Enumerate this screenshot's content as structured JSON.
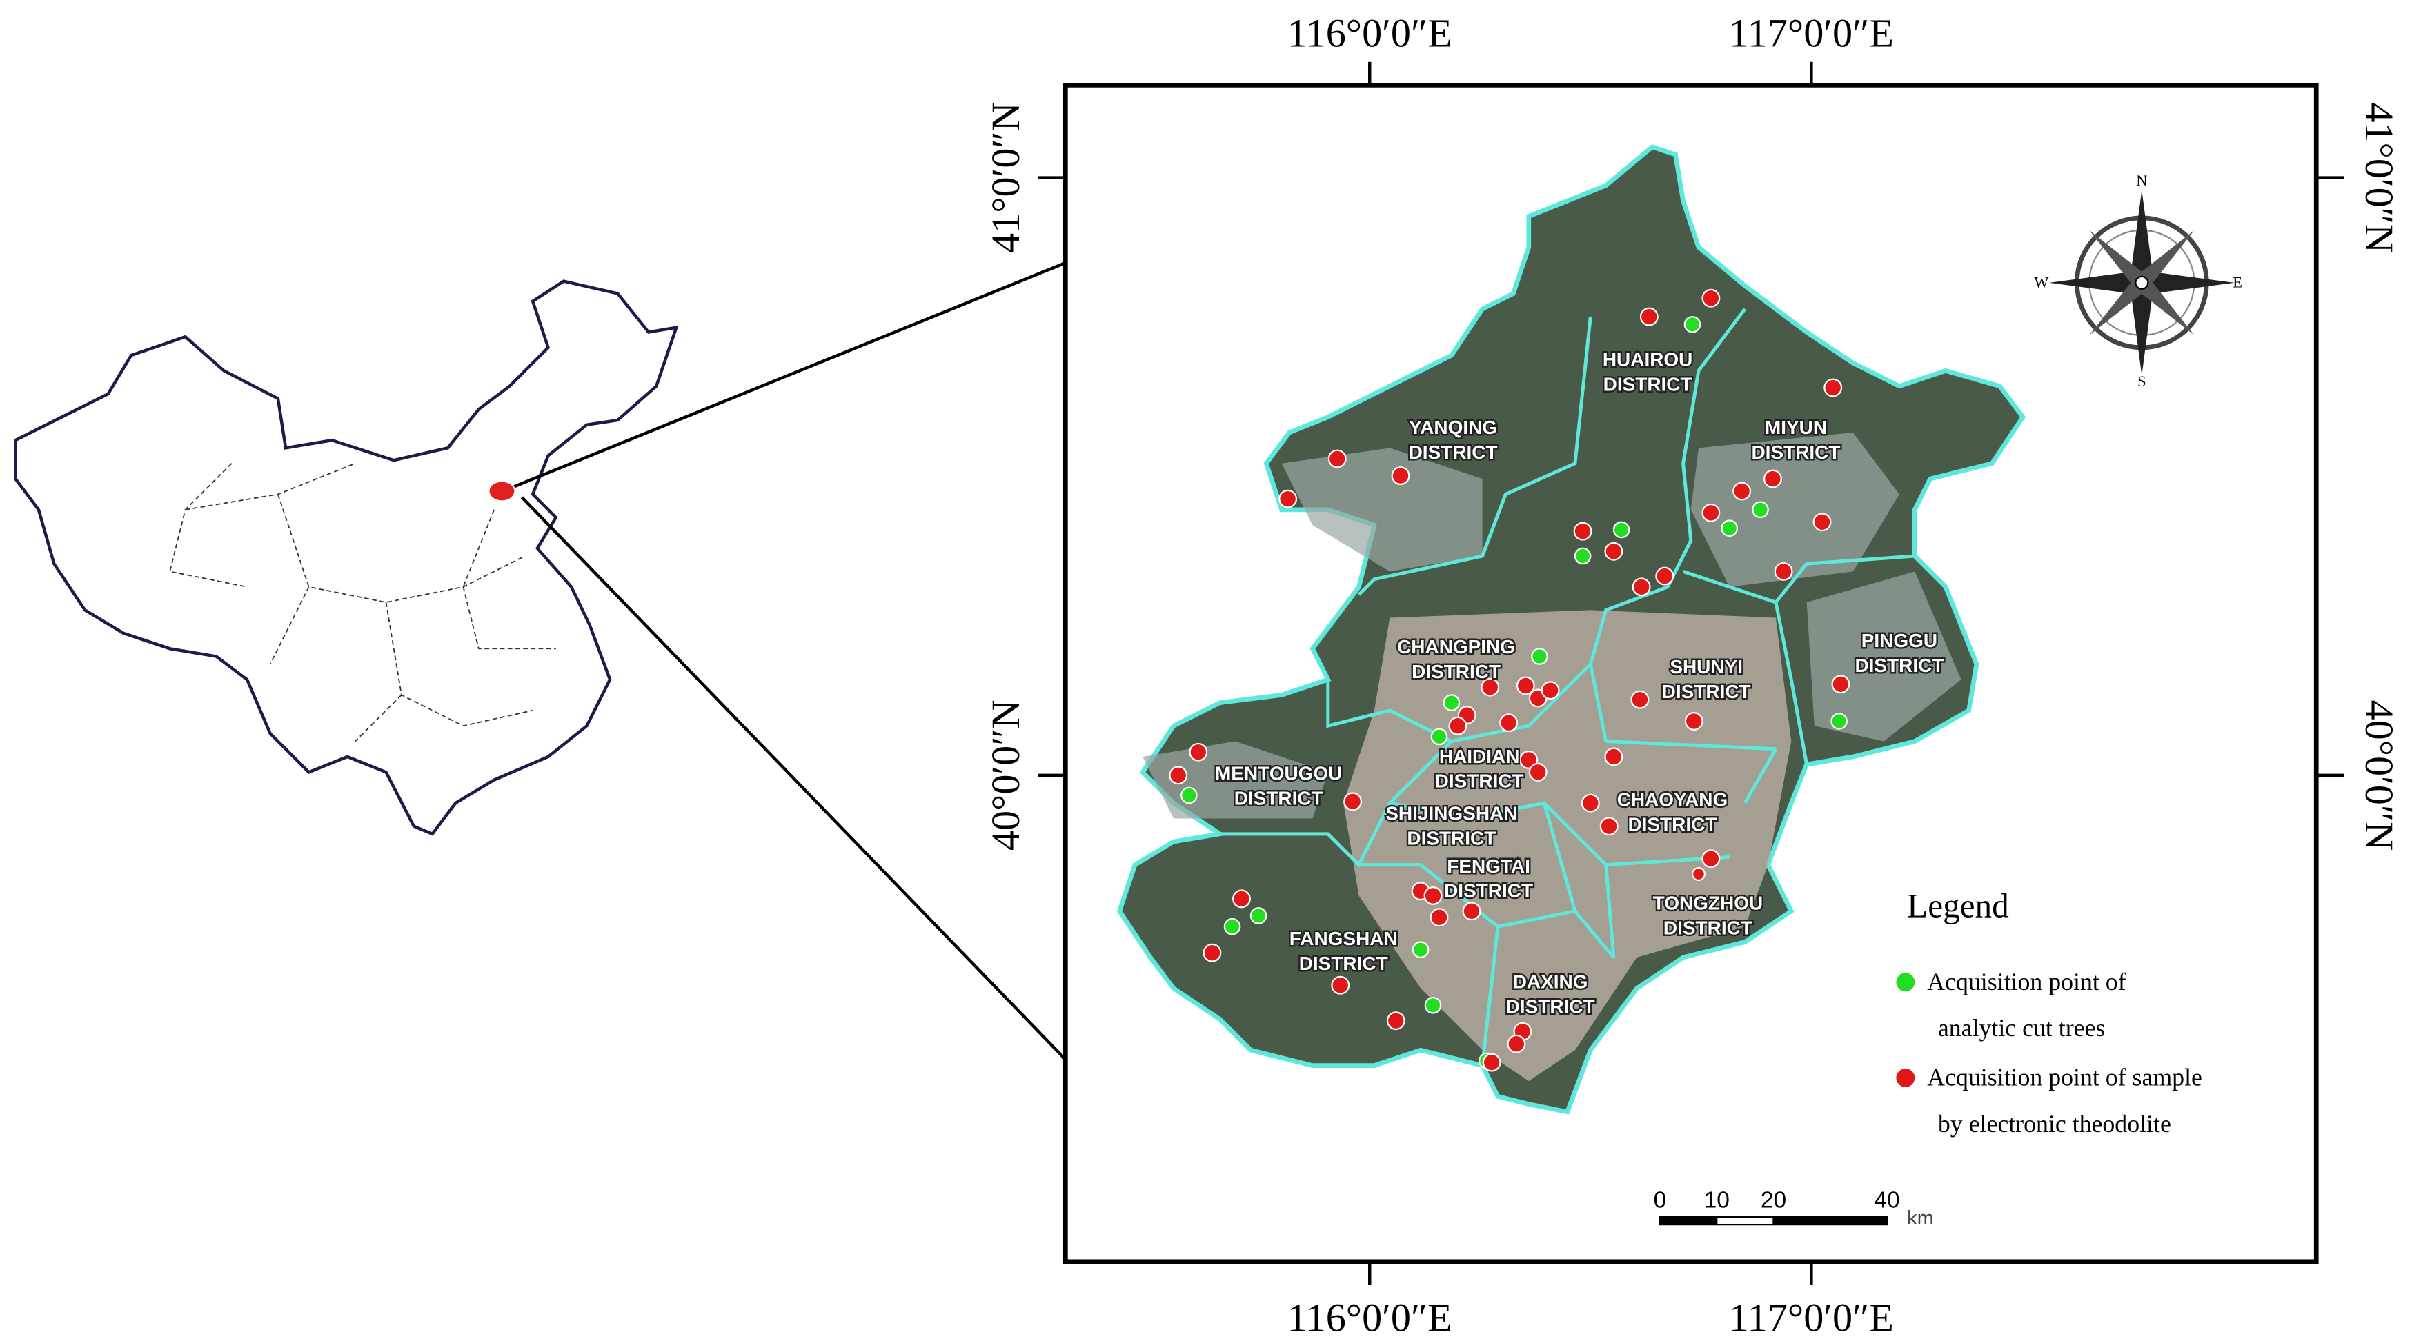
{
  "map": {
    "graticule": {
      "longitudes": [
        "116°0′0″E",
        "117°0′0″E"
      ],
      "latitudes": [
        "41°0′0″N",
        "40°0′0″N"
      ]
    },
    "districts": [
      [
        "HUAIROU",
        "DISTRICT"
      ],
      [
        "YANQING",
        "DISTRICT"
      ],
      [
        "MIYUN",
        "DISTRICT"
      ],
      [
        "CHANGPING",
        "DISTRICT"
      ],
      [
        "SHUNYI",
        "DISTRICT"
      ],
      [
        "PINGGU",
        "DISTRICT"
      ],
      [
        "MENTOUGOU",
        "DISTRICT"
      ],
      [
        "HAIDIAN",
        "DISTRICT"
      ],
      [
        "SHIJINGSHAN",
        "DISTRICT"
      ],
      [
        "CHAOYANG",
        "DISTRICT"
      ],
      [
        "FENGTAI",
        "DISTRICT"
      ],
      [
        "TONGZHOU",
        "DISTRICT"
      ],
      [
        "FANGSHAN",
        "DISTRICT"
      ],
      [
        "DAXING",
        "DISTRICT"
      ]
    ],
    "compass": {
      "north": "N",
      "south": "S",
      "east": "E",
      "west": "W"
    },
    "legend": {
      "title": "Legend",
      "items": [
        {
          "label": [
            "Acquisition point of",
            "analytic cut trees"
          ],
          "color": "#22dd22"
        },
        {
          "label": [
            "Acquisition point of sample",
            "by electronic theodolite"
          ],
          "color": "#e01818"
        }
      ]
    },
    "scale_bar": {
      "ticks": [
        0,
        10,
        20,
        40
      ],
      "unit": "km"
    }
  }
}
